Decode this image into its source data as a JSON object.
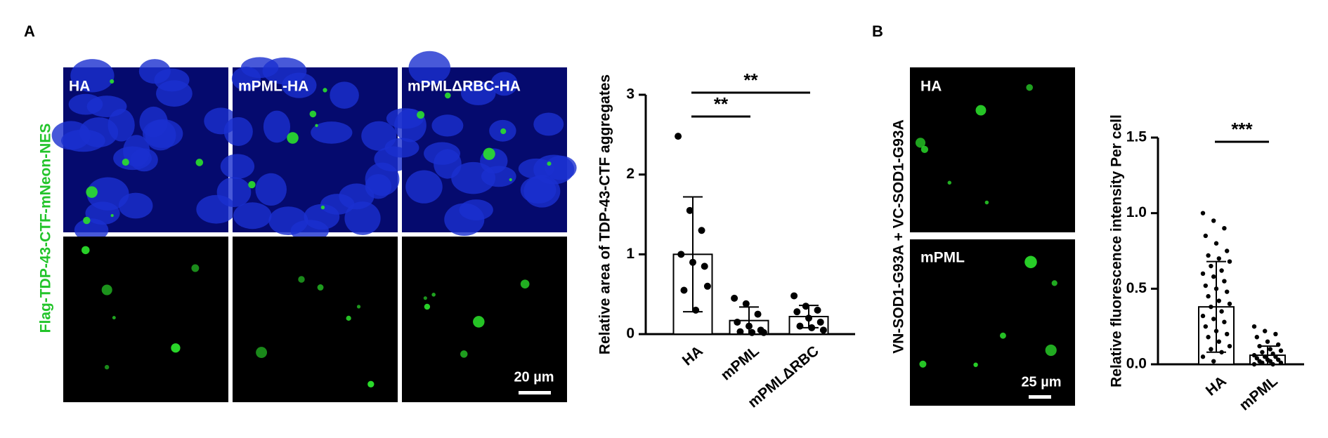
{
  "panels": {
    "A": {
      "label": "A",
      "image_labels": [
        "HA",
        "mPML-HA",
        "mPMLΔRBC-HA"
      ],
      "scale_bar": "20 µm",
      "side_label": "Flag-TDP-43-CTF-mNeon-NES"
    },
    "B": {
      "label": "B",
      "image_labels": [
        "HA",
        "mPML"
      ],
      "scale_bar": "25 µm",
      "side_label": "VN-SOD1-G93A + VC-SOD1-G93A"
    }
  },
  "chart_data": [
    {
      "type": "bar",
      "ylabel": "Relative area of TDP-43-CTF aggregates",
      "categories": [
        "HA",
        "mPML",
        "mPMLΔRBC"
      ],
      "values": [
        1.0,
        0.17,
        0.22
      ],
      "errors": [
        0.72,
        0.17,
        0.14
      ],
      "points": [
        [
          2.48,
          1.55,
          1.3,
          1.0,
          0.9,
          0.85,
          0.55,
          0.3,
          0.6
        ],
        [
          0.45,
          0.38,
          0.25,
          0.15,
          0.1,
          0.05,
          0.03,
          0.02,
          0.02
        ],
        [
          0.48,
          0.35,
          0.3,
          0.28,
          0.2,
          0.15,
          0.1,
          0.08,
          0.05
        ]
      ],
      "annotations": [
        "**",
        "**"
      ],
      "ylim": [
        0,
        3
      ],
      "yticks": [
        0,
        1,
        2,
        3
      ],
      "color": "#ffffff"
    },
    {
      "type": "bar",
      "ylabel": "Relative fluorescence intensity Per cell",
      "categories": [
        "HA",
        "mPML"
      ],
      "values": [
        0.38,
        0.06
      ],
      "errors": [
        0.3,
        0.06
      ],
      "points": [
        [
          1.0,
          0.95,
          0.9,
          0.85,
          0.8,
          0.75,
          0.72,
          0.7,
          0.68,
          0.65,
          0.62,
          0.6,
          0.58,
          0.55,
          0.52,
          0.5,
          0.48,
          0.45,
          0.42,
          0.4,
          0.38,
          0.35,
          0.32,
          0.3,
          0.28,
          0.25,
          0.22,
          0.2,
          0.18,
          0.15,
          0.12,
          0.1,
          0.08,
          0.05,
          0.02
        ],
        [
          0.25,
          0.22,
          0.2,
          0.18,
          0.15,
          0.13,
          0.12,
          0.1,
          0.09,
          0.08,
          0.07,
          0.06,
          0.05,
          0.05,
          0.04,
          0.03,
          0.03,
          0.02,
          0.02,
          0.01,
          0.01,
          0.0,
          0.0
        ]
      ],
      "annotations": [
        "***"
      ],
      "ylim": [
        0,
        1.5
      ],
      "yticks": [
        {
          "value": 0,
          "label": "0.0"
        },
        0.5,
        {
          "value": 1,
          "label": "1.0"
        },
        1.5
      ],
      "color": "#ffffff"
    }
  ]
}
